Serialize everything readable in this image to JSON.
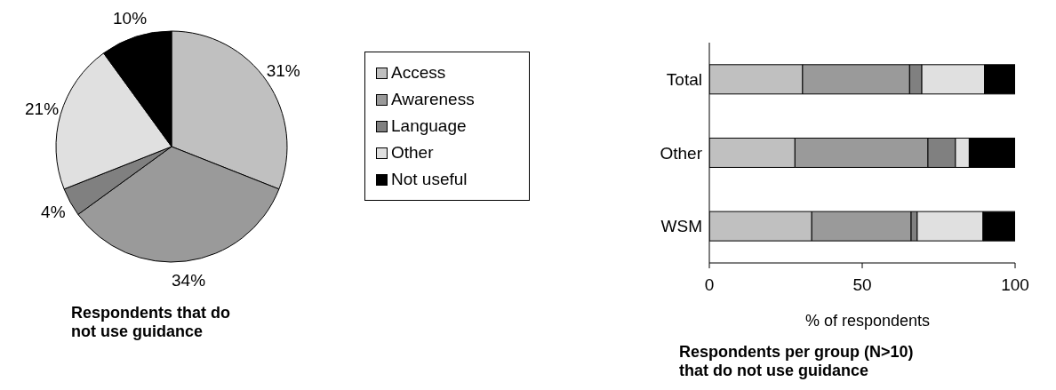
{
  "chart_data": [
    {
      "type": "pie",
      "title": "Respondents that do not use guidance",
      "categories": [
        "Access",
        "Awareness",
        "Language",
        "Other",
        "Not useful"
      ],
      "values": [
        31,
        34,
        4,
        21,
        10
      ],
      "colors": [
        "#c0c0c0",
        "#9a9a9a",
        "#808080",
        "#e0e0e0",
        "#000000"
      ],
      "value_labels": [
        "31%",
        "34%",
        "4%",
        "21%",
        "10%"
      ],
      "legend": "right"
    },
    {
      "type": "bar",
      "orientation": "horizontal",
      "stacked": true,
      "title": "Respondents per group (N>10) that do not use guidance",
      "xlabel": "% of respondents",
      "categories": [
        "Total",
        "Other",
        "WSM"
      ],
      "series": [
        {
          "color": "#c0c0c0",
          "values": [
            30.5,
            28,
            33.5
          ]
        },
        {
          "color": "#9a9a9a",
          "values": [
            35,
            43.5,
            32.5
          ]
        },
        {
          "color": "#808080",
          "values": [
            4,
            9,
            2
          ]
        },
        {
          "color": "#e0e0e0",
          "values": [
            20.5,
            4.5,
            21.5
          ]
        },
        {
          "color": "#000000",
          "values": [
            10,
            15,
            10.5
          ]
        }
      ],
      "xlim": [
        0,
        100
      ],
      "xticks": [
        0,
        50,
        100
      ],
      "grid": false
    }
  ]
}
